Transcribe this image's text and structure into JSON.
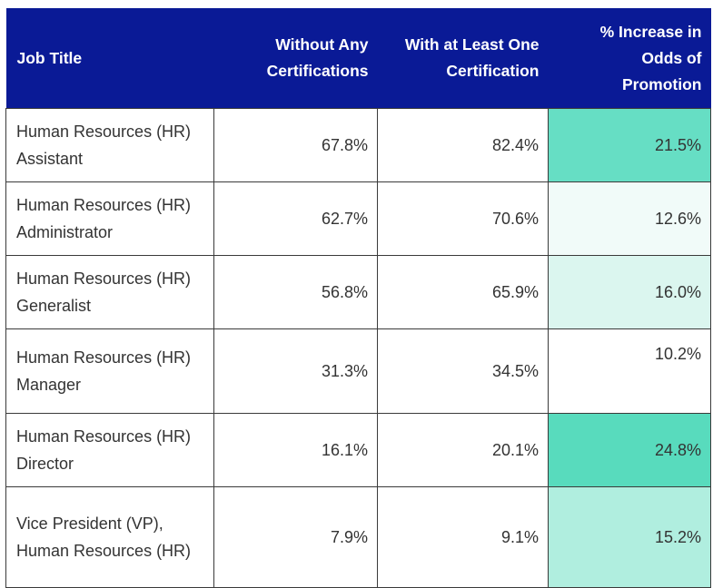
{
  "chart_data": {
    "type": "table",
    "columns": [
      "Job Title",
      "Without Any Certifications",
      "With at Least One Certification",
      "% Increase in Odds of Promotion"
    ],
    "rows": [
      {
        "job_title": "Human Resources (HR) Assistant",
        "without": "67.8%",
        "with": "82.4%",
        "increase": "21.5%",
        "increase_color": "#66dec4"
      },
      {
        "job_title": "Human Resources (HR) Administrator",
        "without": "62.7%",
        "with": "70.6%",
        "increase": "12.6%",
        "increase_color": "#f1fbf9"
      },
      {
        "job_title": "Human Resources (HR) Generalist",
        "without": "56.8%",
        "with": "65.9%",
        "increase": "16.0%",
        "increase_color": "#dbf6ef"
      },
      {
        "job_title": "Human Resources (HR) Manager",
        "without": "31.3%",
        "with": "34.5%",
        "increase": "10.2%",
        "increase_color": "#ffffff"
      },
      {
        "job_title": "Human Resources (HR) Director",
        "without": "16.1%",
        "with": "20.1%",
        "increase": "24.8%",
        "increase_color": "#58dbbd"
      },
      {
        "job_title": "Vice President (VP), Human Resources (HR)",
        "without": "7.9%",
        "with": "9.1%",
        "increase": "15.2%",
        "increase_color": "#b0eedf"
      }
    ]
  },
  "colors": {
    "header_background": "#0a1a96",
    "header_text": "#ffffff",
    "cell_text": "#333333",
    "border": "#3a3a3a"
  }
}
